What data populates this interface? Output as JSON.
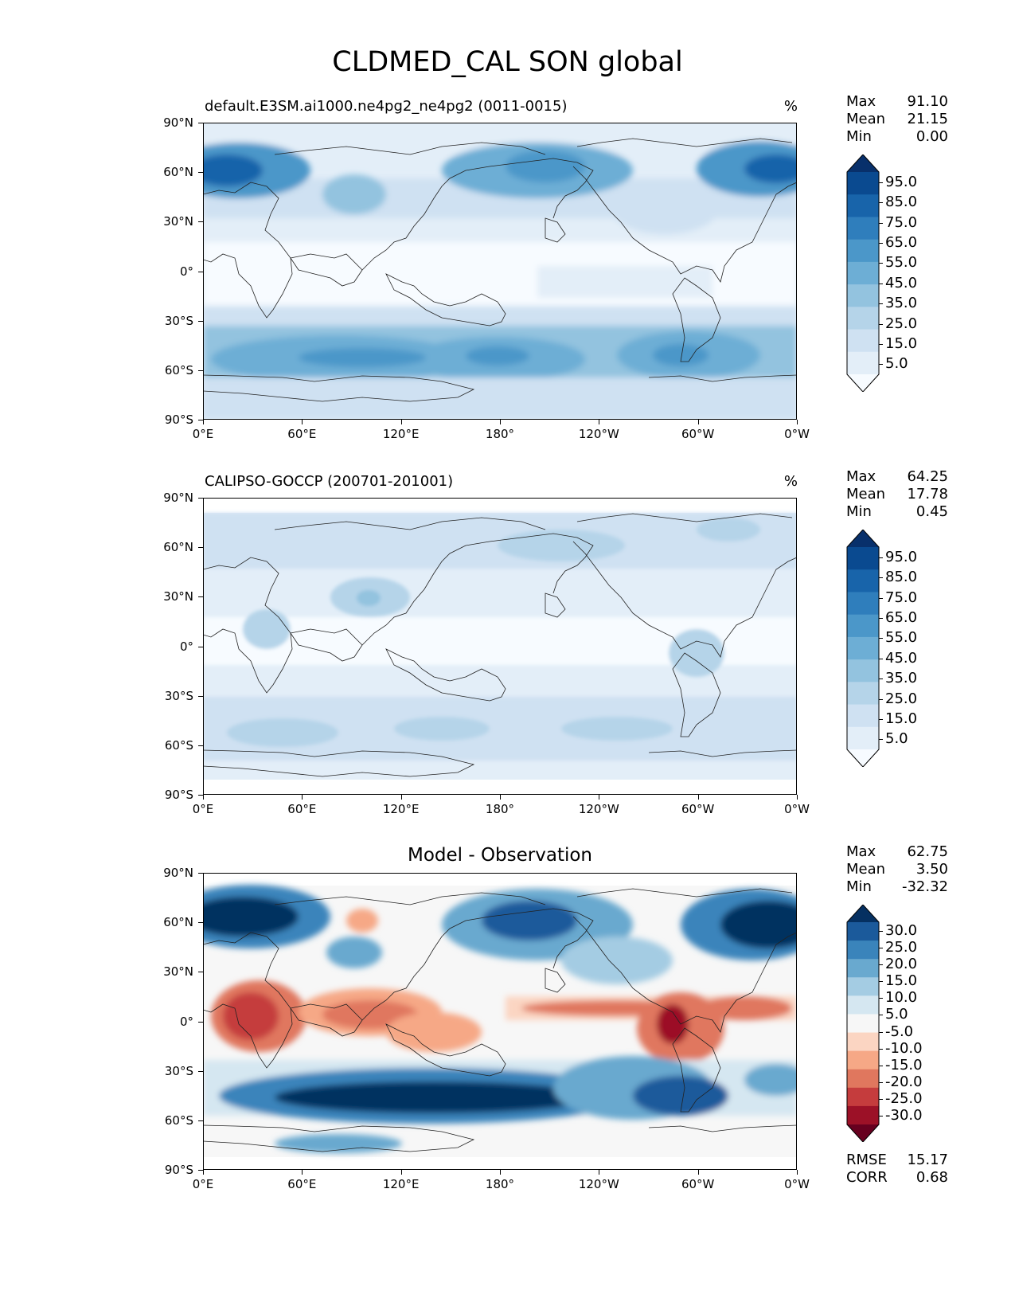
{
  "figure_title": "CLDMED_CAL SON global",
  "colors": {
    "blues": [
      "#f7fbff",
      "#e3eef8",
      "#cfe1f2",
      "#b5d4e9",
      "#93c3df",
      "#6daed5",
      "#4b97c9",
      "#2f7ebc",
      "#1864aa",
      "#0a4a90",
      "#08306b"
    ],
    "diff": [
      "#67001f",
      "#9c1127",
      "#c53c3d",
      "#e0775e",
      "#f6a886",
      "#fbd5c2",
      "#f7f7f7",
      "#d5e7f1",
      "#a4cce3",
      "#69a9cf",
      "#3a84bb",
      "#1b5a9b",
      "#053061"
    ]
  },
  "panels": [
    {
      "title": "default.E3SM.ai1000.ne4pg2_ne4pg2 (0011-0015)",
      "units": "%",
      "stats": [
        {
          "label": "Max",
          "value": "91.10"
        },
        {
          "label": "Mean",
          "value": "21.15"
        },
        {
          "label": "Min",
          "value": "0.00"
        }
      ],
      "colorbar": {
        "labels": [
          "95.0",
          "85.0",
          "75.0",
          "65.0",
          "55.0",
          "45.0",
          "35.0",
          "25.0",
          "15.0",
          "5.0"
        ]
      },
      "yticks": [
        "90°N",
        "60°N",
        "30°N",
        "0°",
        "30°S",
        "60°S",
        "90°S"
      ],
      "xticks": [
        "0°E",
        "60°E",
        "120°E",
        "180°",
        "120°W",
        "60°W",
        "0°W"
      ]
    },
    {
      "title": "CALIPSO-GOCCP (200701-201001)",
      "units": "%",
      "stats": [
        {
          "label": "Max",
          "value": "64.25"
        },
        {
          "label": "Mean",
          "value": "17.78"
        },
        {
          "label": "Min",
          "value": "0.45"
        }
      ],
      "colorbar": {
        "labels": [
          "95.0",
          "85.0",
          "75.0",
          "65.0",
          "55.0",
          "45.0",
          "35.0",
          "25.0",
          "15.0",
          "5.0"
        ]
      },
      "yticks": [
        "90°N",
        "60°N",
        "30°N",
        "0°",
        "30°S",
        "60°S",
        "90°S"
      ],
      "xticks": [
        "0°E",
        "60°E",
        "120°E",
        "180°",
        "120°W",
        "60°W",
        "0°W"
      ]
    },
    {
      "title": "Model - Observation",
      "stats": [
        {
          "label": "Max",
          "value": "62.75"
        },
        {
          "label": "Mean",
          "value": "3.50"
        },
        {
          "label": "Min",
          "value": "-32.32"
        }
      ],
      "colorbar": {
        "labels": [
          "30.0",
          "25.0",
          "20.0",
          "15.0",
          "10.0",
          "5.0",
          "-5.0",
          "-10.0",
          "-15.0",
          "-20.0",
          "-25.0",
          "-30.0"
        ]
      },
      "yticks": [
        "90°N",
        "60°N",
        "30°N",
        "0°",
        "30°S",
        "60°S",
        "90°S"
      ],
      "xticks": [
        "0°E",
        "60°E",
        "120°E",
        "180°",
        "120°W",
        "60°W",
        "0°W"
      ],
      "metrics": [
        {
          "label": "RMSE",
          "value": "15.17"
        },
        {
          "label": "CORR",
          "value": "0.68"
        }
      ]
    }
  ]
}
